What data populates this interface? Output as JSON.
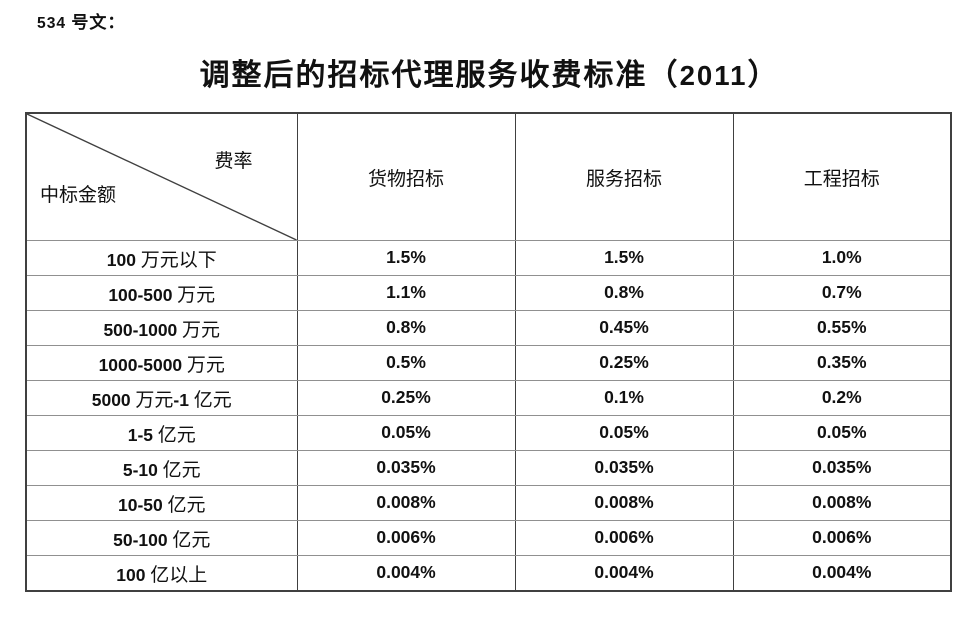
{
  "doc_label": "534 号文：",
  "title": "调整后的招标代理服务收费标准（2011）",
  "table": {
    "corner_top_right": "费率",
    "corner_bottom_left": "中标金额",
    "columns": [
      "货物招标",
      "服务招标",
      "工程招标"
    ],
    "rows": [
      {
        "label": "100 万元以下",
        "values": [
          "1.5%",
          "1.5%",
          "1.0%"
        ]
      },
      {
        "label": "100-500 万元",
        "values": [
          "1.1%",
          "0.8%",
          "0.7%"
        ]
      },
      {
        "label": "500-1000 万元",
        "values": [
          "0.8%",
          "0.45%",
          "0.55%"
        ]
      },
      {
        "label": "1000-5000 万元",
        "values": [
          "0.5%",
          "0.25%",
          "0.35%"
        ]
      },
      {
        "label": "5000 万元-1 亿元",
        "values": [
          "0.25%",
          "0.1%",
          "0.2%"
        ]
      },
      {
        "label": "1-5 亿元",
        "values": [
          "0.05%",
          "0.05%",
          "0.05%"
        ]
      },
      {
        "label": "5-10 亿元",
        "values": [
          "0.035%",
          "0.035%",
          "0.035%"
        ]
      },
      {
        "label": "10-50 亿元",
        "values": [
          "0.008%",
          "0.008%",
          "0.008%"
        ]
      },
      {
        "label": "50-100 亿元",
        "values": [
          "0.006%",
          "0.006%",
          "0.006%"
        ]
      },
      {
        "label": "100 亿以上",
        "values": [
          "0.004%",
          "0.004%",
          "0.004%"
        ]
      }
    ]
  },
  "chart_data": {
    "type": "table",
    "title": "调整后的招标代理服务收费标准（2011）",
    "row_header": "中标金额",
    "column_header": "费率",
    "columns": [
      "货物招标",
      "服务招标",
      "工程招标"
    ],
    "rows": [
      [
        "100 万元以下",
        "1.5%",
        "1.5%",
        "1.0%"
      ],
      [
        "100-500 万元",
        "1.1%",
        "0.8%",
        "0.7%"
      ],
      [
        "500-1000 万元",
        "0.8%",
        "0.45%",
        "0.55%"
      ],
      [
        "1000-5000 万元",
        "0.5%",
        "0.25%",
        "0.35%"
      ],
      [
        "5000 万元-1 亿元",
        "0.25%",
        "0.1%",
        "0.2%"
      ],
      [
        "1-5 亿元",
        "0.05%",
        "0.05%",
        "0.05%"
      ],
      [
        "5-10 亿元",
        "0.035%",
        "0.035%",
        "0.035%"
      ],
      [
        "10-50 亿元",
        "0.008%",
        "0.008%",
        "0.008%"
      ],
      [
        "50-100 亿元",
        "0.006%",
        "0.006%",
        "0.006%"
      ],
      [
        "100 亿以上",
        "0.004%",
        "0.004%",
        "0.004%"
      ]
    ],
    "colors": {
      "text": "#111111",
      "grid_dark": "#404040",
      "grid_light": "#909090",
      "background": "#ffffff"
    }
  }
}
